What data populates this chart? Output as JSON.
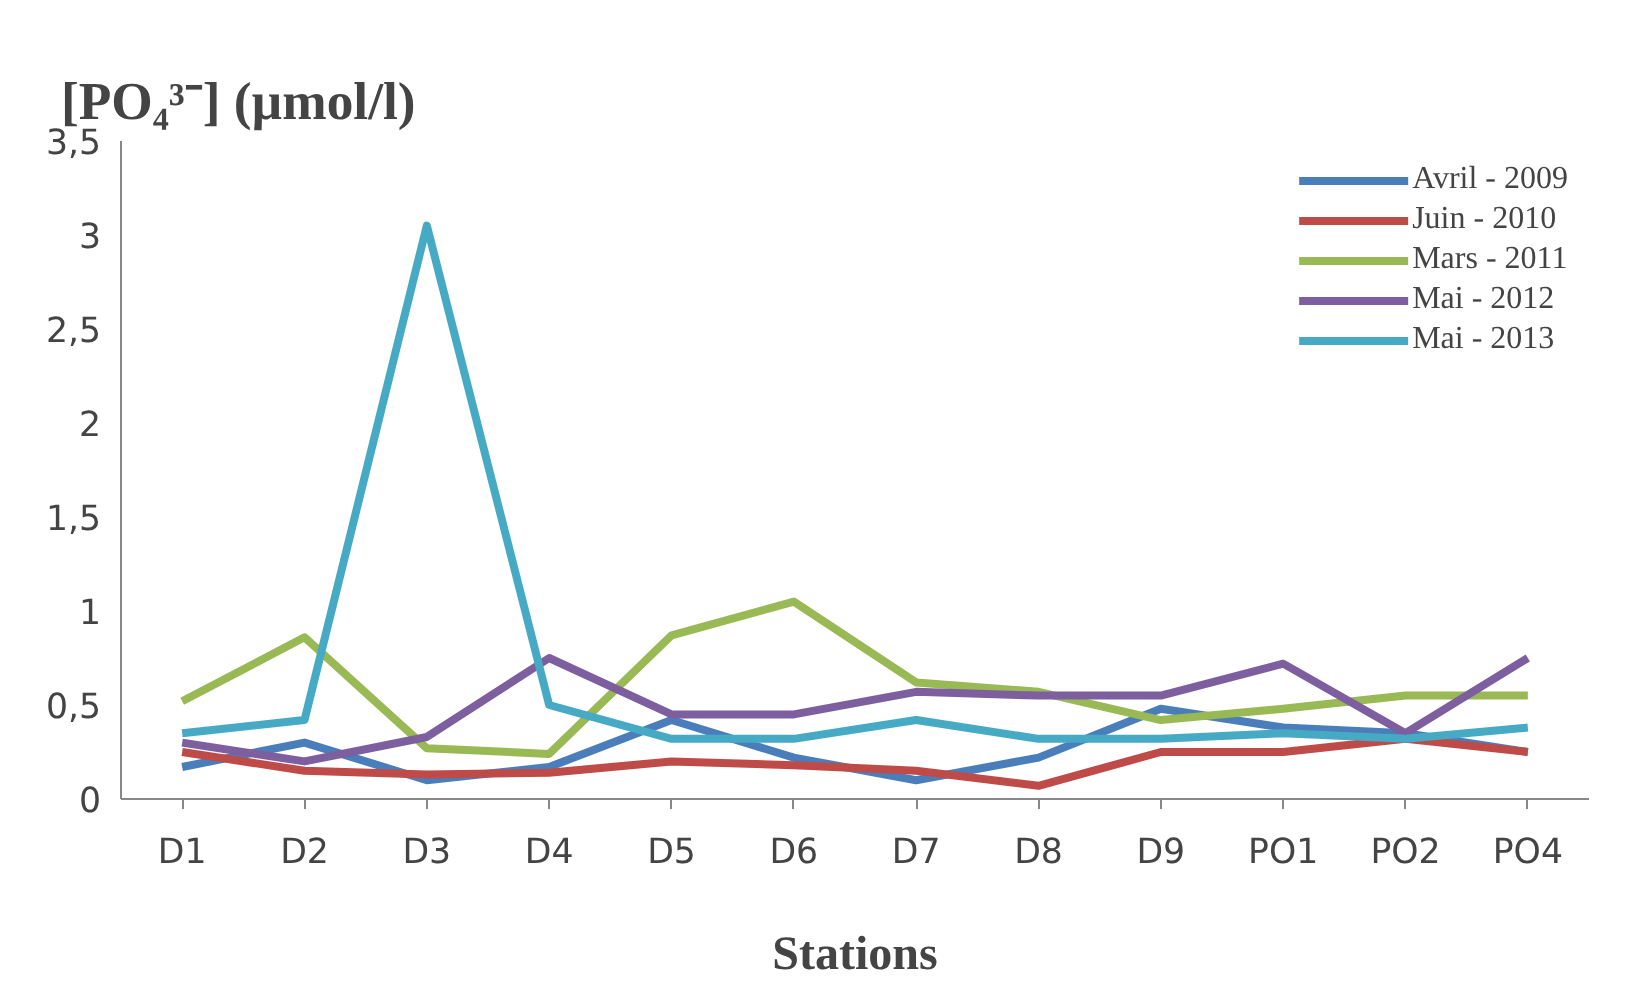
{
  "chart_data": {
    "type": "line",
    "title": "[PO₄³⁻] (µmol/l)",
    "xlabel": "Stations",
    "categories": [
      "D1",
      "D2",
      "D3",
      "D4",
      "D5",
      "D6",
      "D7",
      "D8",
      "D9",
      "PO1",
      "PO2",
      "PO4"
    ],
    "series": [
      {
        "name": "Avril - 2009",
        "color": "#4a7ebb",
        "values": [
          0.17,
          0.3,
          0.1,
          0.17,
          0.42,
          0.22,
          0.1,
          0.22,
          0.48,
          0.38,
          0.35,
          0.25
        ]
      },
      {
        "name": "Juin - 2010",
        "color": "#be4b48",
        "values": [
          0.25,
          0.15,
          0.13,
          0.14,
          0.2,
          0.18,
          0.15,
          0.07,
          0.25,
          0.25,
          0.32,
          0.25
        ]
      },
      {
        "name": "Mars - 2011",
        "color": "#98b954",
        "values": [
          0.52,
          0.86,
          0.27,
          0.24,
          0.87,
          1.05,
          0.62,
          0.57,
          0.42,
          0.48,
          0.55,
          0.55
        ]
      },
      {
        "name": "Mai - 2012",
        "color": "#7d5fa0",
        "values": [
          0.3,
          0.2,
          0.33,
          0.75,
          0.45,
          0.45,
          0.57,
          0.55,
          0.55,
          0.72,
          0.35,
          0.75
        ]
      },
      {
        "name": "Mai - 2013",
        "color": "#46aac5",
        "values": [
          0.35,
          0.42,
          3.05,
          0.5,
          0.32,
          0.32,
          0.42,
          0.32,
          0.32,
          0.35,
          0.32,
          0.38
        ]
      }
    ],
    "ylim": [
      0,
      3.5
    ],
    "yticks": [
      0,
      {
        "value": 0.5,
        "label": "0,5"
      },
      1,
      {
        "value": 1.5,
        "label": "1,5"
      },
      2,
      {
        "value": 2.5,
        "label": "2,5"
      },
      3,
      {
        "value": 3.5,
        "label": "3,5"
      }
    ],
    "grid": false,
    "legend": "top right",
    "marker": "none",
    "line_style": "solid"
  }
}
